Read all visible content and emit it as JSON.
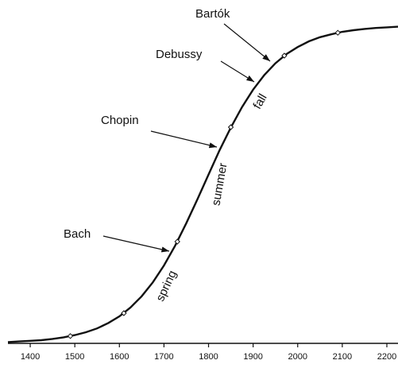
{
  "chart_data": {
    "type": "line",
    "x": [
      1350,
      1375,
      1400,
      1425,
      1450,
      1475,
      1500,
      1525,
      1550,
      1575,
      1600,
      1625,
      1650,
      1675,
      1700,
      1725,
      1750,
      1775,
      1800,
      1825,
      1850,
      1875,
      1900,
      1925,
      1950,
      1975,
      2000,
      2025,
      2050,
      2075,
      2100,
      2125,
      2150,
      2175,
      2200,
      2225
    ],
    "values": [
      0.004,
      0.006,
      0.008,
      0.01,
      0.014,
      0.019,
      0.026,
      0.035,
      0.047,
      0.064,
      0.085,
      0.113,
      0.148,
      0.192,
      0.245,
      0.307,
      0.378,
      0.453,
      0.531,
      0.608,
      0.679,
      0.743,
      0.798,
      0.844,
      0.881,
      0.91,
      0.932,
      0.95,
      0.963,
      0.972,
      0.98,
      0.985,
      0.989,
      0.992,
      0.994,
      0.996
    ],
    "color": "#111111",
    "markers": {
      "x": [
        1490,
        1610,
        1730,
        1850,
        1970,
        2090
      ],
      "values": [
        0.023,
        0.095,
        0.32,
        0.68,
        0.905,
        0.977
      ]
    },
    "annotations": [
      "Bach",
      "Chopin",
      "Debussy",
      "Bartók"
    ],
    "labels": [
      "spring",
      "summer",
      "fall"
    ],
    "xlim": [
      1350,
      2225
    ],
    "ylim": [
      0,
      1
    ],
    "xticks": [
      1400,
      1500,
      1600,
      1700,
      1800,
      1900,
      2000,
      2100,
      2200
    ]
  }
}
